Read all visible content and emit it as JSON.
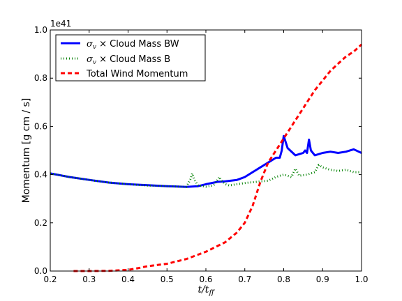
{
  "chart_data": {
    "type": "line",
    "xlabel": "t/t_ff",
    "xlabel_main": "t/t",
    "xlabel_sub": "ff",
    "ylabel": "Momentum [g cm / s]",
    "offset_text": "1e41",
    "xlim": [
      0.2,
      1.0
    ],
    "ylim": [
      0.0,
      1.0
    ],
    "x_ticks": [
      "0.2",
      "0.3",
      "0.4",
      "0.5",
      "0.6",
      "0.7",
      "0.8",
      "0.9",
      "1.0"
    ],
    "y_ticks": [
      "0.0",
      "0.2",
      "0.4",
      "0.6",
      "0.8",
      "1.0"
    ],
    "legend_position": "top-left",
    "series": [
      {
        "name": "σv × Cloud Mass BW",
        "legend_symbol": "σ",
        "legend_sub": "v",
        "legend_rest": " × Cloud Mass BW",
        "color": "#0000ff",
        "style": "solid",
        "x": [
          0.2,
          0.25,
          0.3,
          0.35,
          0.4,
          0.45,
          0.5,
          0.55,
          0.58,
          0.6,
          0.63,
          0.65,
          0.68,
          0.7,
          0.72,
          0.74,
          0.76,
          0.78,
          0.79,
          0.795,
          0.8,
          0.81,
          0.83,
          0.84,
          0.85,
          0.855,
          0.86,
          0.865,
          0.87,
          0.88,
          0.9,
          0.92,
          0.94,
          0.96,
          0.98,
          1.0
        ],
        "y": [
          0.405,
          0.39,
          0.378,
          0.367,
          0.36,
          0.356,
          0.352,
          0.349,
          0.352,
          0.36,
          0.37,
          0.372,
          0.378,
          0.39,
          0.41,
          0.43,
          0.45,
          0.47,
          0.47,
          0.5,
          0.56,
          0.51,
          0.48,
          0.485,
          0.49,
          0.5,
          0.49,
          0.545,
          0.5,
          0.48,
          0.49,
          0.495,
          0.49,
          0.495,
          0.505,
          0.49
        ]
      },
      {
        "name": "σv × Cloud Mass B",
        "legend_symbol": "σ",
        "legend_sub": "v",
        "legend_rest": " × Cloud Mass B",
        "color": "#008000",
        "style": "dotted",
        "x": [
          0.2,
          0.25,
          0.3,
          0.35,
          0.4,
          0.45,
          0.5,
          0.55,
          0.56,
          0.565,
          0.57,
          0.58,
          0.6,
          0.62,
          0.635,
          0.64,
          0.65,
          0.66,
          0.68,
          0.7,
          0.73,
          0.76,
          0.78,
          0.8,
          0.82,
          0.83,
          0.84,
          0.86,
          0.88,
          0.89,
          0.9,
          0.92,
          0.94,
          0.96,
          0.98,
          1.0
        ],
        "y": [
          0.405,
          0.39,
          0.378,
          0.367,
          0.36,
          0.355,
          0.352,
          0.349,
          0.38,
          0.405,
          0.38,
          0.355,
          0.35,
          0.355,
          0.39,
          0.375,
          0.36,
          0.355,
          0.36,
          0.365,
          0.37,
          0.375,
          0.39,
          0.4,
          0.39,
          0.425,
          0.395,
          0.4,
          0.41,
          0.44,
          0.43,
          0.42,
          0.415,
          0.42,
          0.41,
          0.41
        ]
      },
      {
        "name": "Total Wind Momentum",
        "color": "#ff0000",
        "style": "dashed",
        "x": [
          0.26,
          0.3,
          0.35,
          0.4,
          0.42,
          0.45,
          0.5,
          0.55,
          0.6,
          0.65,
          0.68,
          0.7,
          0.72,
          0.74,
          0.76,
          0.78,
          0.8,
          0.82,
          0.84,
          0.86,
          0.88,
          0.9,
          0.92,
          0.94,
          0.96,
          0.98,
          1.0
        ],
        "y": [
          0.0,
          0.0,
          0.001,
          0.005,
          0.01,
          0.02,
          0.03,
          0.05,
          0.08,
          0.12,
          0.16,
          0.2,
          0.27,
          0.37,
          0.45,
          0.5,
          0.55,
          0.6,
          0.65,
          0.7,
          0.75,
          0.79,
          0.83,
          0.86,
          0.89,
          0.91,
          0.94
        ]
      }
    ]
  }
}
